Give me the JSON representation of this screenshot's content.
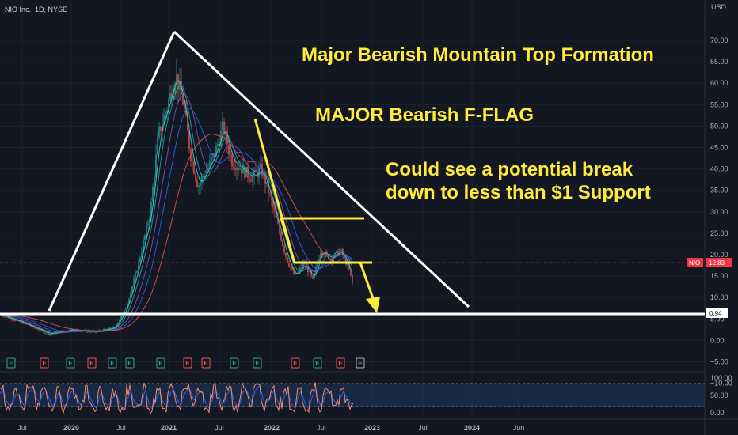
{
  "symbol_title": "NIO Inc., 1D, NYSE",
  "currency": "USD",
  "ticker": "NIO",
  "last_price": "12.83",
  "support_level": "0.94",
  "colors": {
    "background": "#131722",
    "annotation": "#ffeb3b",
    "trendline": "#ffffff",
    "price_badge": "#f23645",
    "candle_up": "#26a69a",
    "candle_down": "#ef5350",
    "rsi_line": "#ff8a65",
    "rsi_band": "#1e3a5f"
  },
  "annotations": {
    "mountain": "Major Bearish Mountain Top Formation",
    "fflag": "MAJOR Bearish F-FLAG",
    "breakdown_line1": "Could see a potential break",
    "breakdown_line2": "down to less than $1 Support"
  },
  "price_axis_ticks": [
    "70.00",
    "65.00",
    "60.00",
    "55.00",
    "50.00",
    "45.00",
    "40.00",
    "35.00",
    "30.00",
    "25.00",
    "20.00",
    "15.00",
    "10.00",
    "5.00",
    "0.00",
    "−5.00",
    "−10.00"
  ],
  "oscillator_axis_ticks": [
    "100.00",
    "50.00",
    "0.00"
  ],
  "time_axis_labels": [
    "Jul",
    "2020",
    "Jul",
    "2021",
    "Jul",
    "2022",
    "Jul",
    "2023",
    "Jul",
    "2024",
    "Jun"
  ],
  "events": [
    {
      "type": "E",
      "kind": "green"
    },
    {
      "type": "E",
      "kind": "red"
    },
    {
      "type": "E",
      "kind": "green"
    },
    {
      "type": "E",
      "kind": "red"
    },
    {
      "type": "E",
      "kind": "green"
    },
    {
      "type": "E",
      "kind": "green"
    },
    {
      "type": "E",
      "kind": "green"
    },
    {
      "type": "E",
      "kind": "red"
    },
    {
      "type": "E",
      "kind": "red"
    },
    {
      "type": "E",
      "kind": "green"
    },
    {
      "type": "E",
      "kind": "green"
    },
    {
      "type": "E",
      "kind": "red"
    },
    {
      "type": "E",
      "kind": "green"
    },
    {
      "type": "E",
      "kind": "red"
    },
    {
      "type": "E",
      "kind": "outline"
    }
  ],
  "chart_data": {
    "type": "line",
    "title": "NIO Inc., 1D, NYSE",
    "ylabel": "USD",
    "ylim": [
      -12,
      72
    ],
    "x": [
      "2019-07",
      "2019-10",
      "2020-01",
      "2020-04",
      "2020-07",
      "2020-10",
      "2021-01",
      "2021-04",
      "2021-07",
      "2021-10",
      "2022-01",
      "2022-04",
      "2022-07",
      "2022-10"
    ],
    "series": [
      {
        "values": [
          3,
          2,
          3,
          2.5,
          5,
          25,
          60,
          40,
          45,
          38,
          30,
          17,
          20,
          12.83
        ]
      }
    ],
    "grid": true
  }
}
